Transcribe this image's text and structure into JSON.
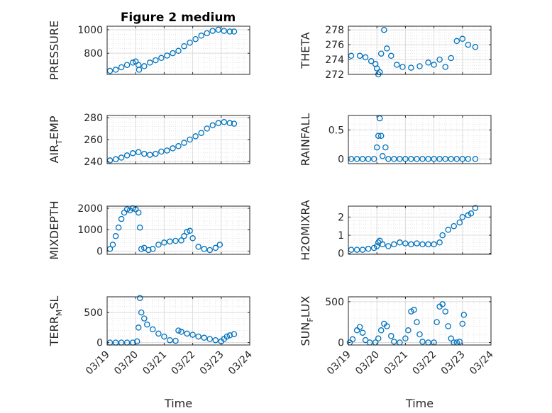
{
  "figure": {
    "title": "Figure 2 medium",
    "accent": "#0072BD"
  },
  "chart_data": [
    {
      "type": "scatter",
      "name": "pressure",
      "grid": true,
      "ylabel": "PRESSURE",
      "ylabel_parts": [
        "PRESSURE"
      ],
      "xlabel": "",
      "ylim": [
        620,
        1030
      ],
      "yticks": [
        800,
        1000
      ],
      "xlim": [
        0,
        5
      ],
      "xticks": [
        0,
        1,
        2,
        3,
        4,
        5
      ],
      "xticklabels": [],
      "points": [
        [
          0.1,
          650
        ],
        [
          0.3,
          660
        ],
        [
          0.5,
          680
        ],
        [
          0.7,
          700
        ],
        [
          0.9,
          720
        ],
        [
          1.0,
          730
        ],
        [
          1.1,
          700
        ],
        [
          1.12,
          660
        ],
        [
          1.3,
          690
        ],
        [
          1.5,
          720
        ],
        [
          1.7,
          740
        ],
        [
          1.9,
          760
        ],
        [
          2.1,
          780
        ],
        [
          2.3,
          800
        ],
        [
          2.5,
          820
        ],
        [
          2.7,
          860
        ],
        [
          2.9,
          890
        ],
        [
          3.1,
          920
        ],
        [
          3.3,
          950
        ],
        [
          3.5,
          970
        ],
        [
          3.7,
          990
        ],
        [
          3.9,
          1000
        ],
        [
          4.1,
          990
        ],
        [
          4.3,
          985
        ],
        [
          4.45,
          985
        ]
      ]
    },
    {
      "type": "scatter",
      "name": "theta",
      "grid": true,
      "ylabel": "THETA",
      "ylabel_parts": [
        "THETA"
      ],
      "xlabel": "",
      "ylim": [
        272,
        278.5
      ],
      "yticks": [
        272,
        274,
        276,
        278
      ],
      "xlim": [
        0,
        5
      ],
      "xticks": [
        0,
        1,
        2,
        3,
        4,
        5
      ],
      "xticklabels": [],
      "points": [
        [
          0.1,
          274.5
        ],
        [
          0.4,
          274.5
        ],
        [
          0.6,
          274.3
        ],
        [
          0.8,
          273.8
        ],
        [
          0.95,
          273.4
        ],
        [
          1.0,
          272.8
        ],
        [
          1.05,
          272.0
        ],
        [
          1.1,
          272.3
        ],
        [
          1.15,
          274.8
        ],
        [
          1.25,
          278.0
        ],
        [
          1.35,
          275.5
        ],
        [
          1.5,
          274.5
        ],
        [
          1.7,
          273.3
        ],
        [
          1.9,
          273.0
        ],
        [
          2.2,
          272.9
        ],
        [
          2.5,
          273.1
        ],
        [
          2.8,
          273.6
        ],
        [
          3.0,
          273.3
        ],
        [
          3.2,
          274.0
        ],
        [
          3.4,
          273.0
        ],
        [
          3.6,
          274.2
        ],
        [
          3.8,
          276.5
        ],
        [
          4.0,
          276.8
        ],
        [
          4.2,
          276.0
        ],
        [
          4.45,
          275.7
        ]
      ]
    },
    {
      "type": "scatter",
      "name": "air-temp",
      "grid": true,
      "ylabel": "AIR_TEMP",
      "ylabel_parts": [
        "AIR",
        "T",
        "EMP"
      ],
      "xlabel": "",
      "ylim": [
        238,
        282
      ],
      "yticks": [
        240,
        260,
        280
      ],
      "xlim": [
        0,
        5
      ],
      "xticks": [
        0,
        1,
        2,
        3,
        4,
        5
      ],
      "xticklabels": [],
      "points": [
        [
          0.1,
          241
        ],
        [
          0.3,
          242
        ],
        [
          0.5,
          243.5
        ],
        [
          0.7,
          245.5
        ],
        [
          0.9,
          247.5
        ],
        [
          1.1,
          248.5
        ],
        [
          1.3,
          247
        ],
        [
          1.5,
          246
        ],
        [
          1.7,
          247
        ],
        [
          1.9,
          249
        ],
        [
          2.1,
          250
        ],
        [
          2.3,
          252
        ],
        [
          2.5,
          254
        ],
        [
          2.7,
          257
        ],
        [
          2.9,
          260
        ],
        [
          3.1,
          263
        ],
        [
          3.3,
          266
        ],
        [
          3.5,
          270
        ],
        [
          3.7,
          273
        ],
        [
          3.9,
          275
        ],
        [
          4.1,
          276
        ],
        [
          4.3,
          275
        ],
        [
          4.45,
          274.5
        ]
      ]
    },
    {
      "type": "scatter",
      "name": "rainfall",
      "grid": true,
      "ylabel": "RAINFALL",
      "ylabel_parts": [
        "RAINFALL"
      ],
      "xlabel": "",
      "ylim": [
        -0.08,
        0.75
      ],
      "yticks": [
        0,
        0.5
      ],
      "xlim": [
        0,
        5
      ],
      "xticks": [
        0,
        1,
        2,
        3,
        4,
        5
      ],
      "xticklabels": [],
      "points": [
        [
          0.1,
          0
        ],
        [
          0.3,
          0
        ],
        [
          0.5,
          0
        ],
        [
          0.7,
          0
        ],
        [
          0.9,
          0
        ],
        [
          1.0,
          0.2
        ],
        [
          1.05,
          0.4
        ],
        [
          1.1,
          0.7
        ],
        [
          1.15,
          0.4
        ],
        [
          1.2,
          0.05
        ],
        [
          1.3,
          0.2
        ],
        [
          1.4,
          0
        ],
        [
          1.6,
          0
        ],
        [
          1.8,
          0
        ],
        [
          2.0,
          0
        ],
        [
          2.2,
          0
        ],
        [
          2.4,
          0
        ],
        [
          2.6,
          0
        ],
        [
          2.8,
          0
        ],
        [
          3.0,
          0
        ],
        [
          3.2,
          0
        ],
        [
          3.4,
          0
        ],
        [
          3.6,
          0
        ],
        [
          3.8,
          0
        ],
        [
          4.0,
          0
        ],
        [
          4.2,
          0
        ],
        [
          4.45,
          0
        ]
      ]
    },
    {
      "type": "scatter",
      "name": "mixdepth",
      "grid": true,
      "ylabel": "MIXDEPTH",
      "ylabel_parts": [
        "MIXDEPTH"
      ],
      "xlabel": "",
      "ylim": [
        -150,
        2100
      ],
      "yticks": [
        0,
        1000,
        2000
      ],
      "xlim": [
        0,
        5
      ],
      "xticks": [
        0,
        1,
        2,
        3,
        4,
        5
      ],
      "xticklabels": [],
      "points": [
        [
          0.1,
          100
        ],
        [
          0.2,
          300
        ],
        [
          0.3,
          700
        ],
        [
          0.4,
          1100
        ],
        [
          0.5,
          1500
        ],
        [
          0.6,
          1800
        ],
        [
          0.7,
          1950
        ],
        [
          0.8,
          1900
        ],
        [
          0.9,
          2000
        ],
        [
          1.0,
          1950
        ],
        [
          1.1,
          1800
        ],
        [
          1.15,
          1100
        ],
        [
          1.2,
          100
        ],
        [
          1.3,
          150
        ],
        [
          1.45,
          50
        ],
        [
          1.6,
          100
        ],
        [
          1.8,
          300
        ],
        [
          2.0,
          400
        ],
        [
          2.2,
          450
        ],
        [
          2.4,
          480
        ],
        [
          2.6,
          500
        ],
        [
          2.7,
          700
        ],
        [
          2.8,
          900
        ],
        [
          2.9,
          950
        ],
        [
          3.0,
          600
        ],
        [
          3.2,
          200
        ],
        [
          3.4,
          100
        ],
        [
          3.6,
          50
        ],
        [
          3.8,
          150
        ],
        [
          3.95,
          300
        ]
      ]
    },
    {
      "type": "scatter",
      "name": "h2omixra",
      "grid": true,
      "ylabel": "H2OMIXRA",
      "ylabel_parts": [
        "H2OMIXRA"
      ],
      "xlabel": "",
      "ylim": [
        -0.05,
        2.6
      ],
      "yticks": [
        0,
        1,
        2
      ],
      "xlim": [
        0,
        5
      ],
      "xticks": [
        0,
        1,
        2,
        3,
        4,
        5
      ],
      "xticklabels": [],
      "points": [
        [
          0.1,
          0.2
        ],
        [
          0.3,
          0.2
        ],
        [
          0.5,
          0.2
        ],
        [
          0.7,
          0.25
        ],
        [
          0.9,
          0.3
        ],
        [
          1.0,
          0.4
        ],
        [
          1.05,
          0.6
        ],
        [
          1.1,
          0.7
        ],
        [
          1.2,
          0.5
        ],
        [
          1.4,
          0.4
        ],
        [
          1.6,
          0.5
        ],
        [
          1.8,
          0.6
        ],
        [
          2.0,
          0.55
        ],
        [
          2.2,
          0.5
        ],
        [
          2.4,
          0.55
        ],
        [
          2.6,
          0.5
        ],
        [
          2.8,
          0.5
        ],
        [
          3.0,
          0.5
        ],
        [
          3.2,
          0.6
        ],
        [
          3.3,
          1.0
        ],
        [
          3.5,
          1.3
        ],
        [
          3.7,
          1.5
        ],
        [
          3.9,
          1.7
        ],
        [
          4.0,
          2.0
        ],
        [
          4.2,
          2.1
        ],
        [
          4.3,
          2.2
        ],
        [
          4.45,
          2.5
        ]
      ]
    },
    {
      "type": "scatter",
      "name": "terr-msl",
      "grid": true,
      "ylabel": "TERR_MSL",
      "ylabel_parts": [
        "TERR",
        "M",
        "SL"
      ],
      "xlabel": "Time",
      "ylim": [
        -40,
        760
      ],
      "yticks": [
        0,
        500
      ],
      "xlim": [
        0,
        5
      ],
      "xticks": [
        0,
        1,
        2,
        3,
        4,
        5
      ],
      "xticklabels": [
        "03/19",
        "03/20",
        "03/21",
        "03/22",
        "03/23",
        "03/24"
      ],
      "points": [
        [
          0.1,
          0
        ],
        [
          0.3,
          0
        ],
        [
          0.5,
          0
        ],
        [
          0.7,
          0
        ],
        [
          0.9,
          0
        ],
        [
          1.05,
          20
        ],
        [
          1.1,
          250
        ],
        [
          1.15,
          740
        ],
        [
          1.2,
          500
        ],
        [
          1.3,
          400
        ],
        [
          1.4,
          300
        ],
        [
          1.6,
          220
        ],
        [
          1.8,
          150
        ],
        [
          2.0,
          100
        ],
        [
          2.2,
          40
        ],
        [
          2.4,
          30
        ],
        [
          2.5,
          200
        ],
        [
          2.6,
          180
        ],
        [
          2.8,
          150
        ],
        [
          3.0,
          130
        ],
        [
          3.2,
          100
        ],
        [
          3.4,
          80
        ],
        [
          3.6,
          60
        ],
        [
          3.8,
          40
        ],
        [
          4.0,
          20
        ],
        [
          4.1,
          60
        ],
        [
          4.2,
          100
        ],
        [
          4.3,
          120
        ],
        [
          4.45,
          140
        ]
      ]
    },
    {
      "type": "scatter",
      "name": "sun-flux",
      "grid": true,
      "ylabel": "SUN_FLUX",
      "ylabel_parts": [
        "SUN",
        "F",
        "LUX"
      ],
      "xlabel": "Time",
      "ylim": [
        -30,
        560
      ],
      "yticks": [
        0,
        500
      ],
      "xlim": [
        0,
        5
      ],
      "xticks": [
        0,
        1,
        2,
        3,
        4,
        5
      ],
      "xticklabels": [
        "03/19",
        "03/20",
        "03/21",
        "03/22",
        "03/23",
        "03/24"
      ],
      "points": [
        [
          0.05,
          0
        ],
        [
          0.15,
          40
        ],
        [
          0.3,
          150
        ],
        [
          0.4,
          190
        ],
        [
          0.5,
          120
        ],
        [
          0.6,
          30
        ],
        [
          0.75,
          0
        ],
        [
          0.95,
          0
        ],
        [
          1.05,
          50
        ],
        [
          1.15,
          150
        ],
        [
          1.25,
          230
        ],
        [
          1.35,
          200
        ],
        [
          1.5,
          80
        ],
        [
          1.6,
          10
        ],
        [
          1.8,
          0
        ],
        [
          2.0,
          50
        ],
        [
          2.1,
          150
        ],
        [
          2.2,
          380
        ],
        [
          2.3,
          400
        ],
        [
          2.4,
          250
        ],
        [
          2.5,
          100
        ],
        [
          2.6,
          10
        ],
        [
          2.8,
          0
        ],
        [
          3.0,
          0
        ],
        [
          3.1,
          250
        ],
        [
          3.2,
          440
        ],
        [
          3.3,
          470
        ],
        [
          3.4,
          380
        ],
        [
          3.5,
          200
        ],
        [
          3.6,
          50
        ],
        [
          3.7,
          0
        ],
        [
          3.8,
          0
        ],
        [
          3.9,
          10
        ],
        [
          4.0,
          230
        ],
        [
          4.05,
          340
        ]
      ]
    }
  ]
}
